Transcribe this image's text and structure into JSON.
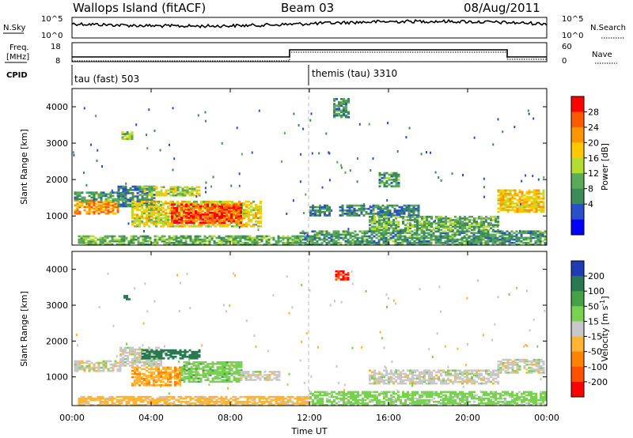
{
  "header": {
    "station": "Wallops Island (fitACF)",
    "beam": "Beam 03",
    "date": "08/Aug/2011"
  },
  "top_panels": {
    "nsky_label": "N.Sky",
    "nsky_ticks": [
      "10^5",
      "10^0"
    ],
    "nsearch_label": "N.Search",
    "nsearch_ticks": [
      "10^5",
      "10^0"
    ],
    "freq_label_line1": "Freq.",
    "freq_label_line2": "[MHz]",
    "freq_ticks": [
      "18",
      "8"
    ],
    "nave_label": "Nave",
    "nave_ticks": [
      "60",
      "0"
    ],
    "cpid_label": "CPID",
    "cpid_segments": [
      {
        "name": "tau (fast) 503",
        "start_hour": 0
      },
      {
        "name": "themis (tau) 3310",
        "start_hour": 12
      }
    ]
  },
  "chart_data": [
    {
      "type": "heatmap",
      "quantity": "Power",
      "ylabel": "Slant Range [km]",
      "xlabel": "Time UT",
      "xlim": [
        0,
        24
      ],
      "ylim": [
        200,
        4500
      ],
      "yticks": [
        "1000",
        "2000",
        "3000",
        "4000"
      ],
      "xticks": [
        "00:00",
        "04:00",
        "08:00",
        "12:00",
        "16:00",
        "20:00",
        "00:00"
      ],
      "colorbar_label": "Power [dB]",
      "colorbar_ticks": [
        "28",
        "24",
        "20",
        "16",
        "12",
        "8",
        "4"
      ],
      "colorbar_colors": [
        "#ff0000",
        "#ff5a00",
        "#ff9600",
        "#ffc800",
        "#b4dc32",
        "#5aaa5a",
        "#3c8c5a",
        "#2850c8",
        "#0000ff"
      ],
      "regions": [
        {
          "x": [
            0.1,
            2.3
          ],
          "range": [
            1050,
            1450
          ],
          "level": 22
        },
        {
          "x": [
            0.1,
            2.6
          ],
          "range": [
            1400,
            1650
          ],
          "level": 8
        },
        {
          "x": [
            2.3,
            4.2
          ],
          "range": [
            1250,
            1800
          ],
          "level": 6
        },
        {
          "x": [
            3.5,
            6.5
          ],
          "range": [
            1550,
            1800
          ],
          "level": 14
        },
        {
          "x": [
            3.0,
            9.5
          ],
          "range": [
            700,
            1400
          ],
          "level": 16
        },
        {
          "x": [
            5.0,
            8.5
          ],
          "range": [
            800,
            1300
          ],
          "level": 27
        },
        {
          "x": [
            2.5,
            3.0
          ],
          "range": [
            3100,
            3300
          ],
          "level": 12
        },
        {
          "x": [
            12.0,
            13.0
          ],
          "range": [
            1000,
            1300
          ],
          "level": 6
        },
        {
          "x": [
            13.5,
            17.5
          ],
          "range": [
            1000,
            1300
          ],
          "level": 6
        },
        {
          "x": [
            15.0,
            21.5
          ],
          "range": [
            600,
            1000
          ],
          "level": 10
        },
        {
          "x": [
            21.5,
            23.9
          ],
          "range": [
            1100,
            1700
          ],
          "level": 18
        },
        {
          "x": [
            13.2,
            14.0
          ],
          "range": [
            3700,
            4200
          ],
          "level": 6
        },
        {
          "x": [
            15.5,
            16.5
          ],
          "range": [
            1800,
            2200
          ],
          "level": 8
        },
        {
          "x": [
            0.3,
            11.5
          ],
          "range": [
            200,
            450
          ],
          "level": 10
        },
        {
          "x": [
            11.5,
            23.9
          ],
          "range": [
            200,
            600
          ],
          "level": 8
        }
      ]
    },
    {
      "type": "heatmap",
      "quantity": "Velocity",
      "ylabel": "Slant Range [km]",
      "xlabel": "Time UT",
      "xlim": [
        0,
        24
      ],
      "ylim": [
        200,
        4500
      ],
      "yticks": [
        "1000",
        "2000",
        "3000",
        "4000"
      ],
      "xticks": [
        "00:00",
        "04:00",
        "08:00",
        "12:00",
        "16:00",
        "20:00",
        "00:00"
      ],
      "colorbar_label": "Velocity [m s^-1]",
      "colorbar_ticks": [
        "200",
        "100",
        "50",
        "15",
        "-15",
        "-50",
        "-100",
        "-200"
      ],
      "colorbar_colors": [
        "#1e3cb4",
        "#287850",
        "#46a046",
        "#78d250",
        "#c8c8c8",
        "#ffb432",
        "#ff8200",
        "#ff5000",
        "#ff0000"
      ],
      "regions": [
        {
          "x": [
            0.1,
            2.4
          ],
          "range": [
            1150,
            1450
          ],
          "level": 0
        },
        {
          "x": [
            2.4,
            4.5
          ],
          "range": [
            1300,
            1800
          ],
          "level": 0
        },
        {
          "x": [
            3.5,
            6.5
          ],
          "range": [
            1500,
            1750
          ],
          "level": 180
        },
        {
          "x": [
            3.0,
            5.5
          ],
          "range": [
            750,
            1250
          ],
          "level": -40
        },
        {
          "x": [
            5.5,
            8.5
          ],
          "range": [
            850,
            1400
          ],
          "level": 35
        },
        {
          "x": [
            8.5,
            10.5
          ],
          "range": [
            900,
            1150
          ],
          "level": 0
        },
        {
          "x": [
            2.6,
            2.9
          ],
          "range": [
            3150,
            3280
          ],
          "level": 150
        },
        {
          "x": [
            13.3,
            14.0
          ],
          "range": [
            3700,
            3950
          ],
          "level": -200
        },
        {
          "x": [
            15.0,
            21.5
          ],
          "range": [
            800,
            1200
          ],
          "level": 0
        },
        {
          "x": [
            21.5,
            23.9
          ],
          "range": [
            1100,
            1500
          ],
          "level": 0
        },
        {
          "x": [
            0.3,
            12.0
          ],
          "range": [
            200,
            450
          ],
          "level": -30
        },
        {
          "x": [
            12.0,
            23.9
          ],
          "range": [
            200,
            600
          ],
          "level": 30
        }
      ]
    }
  ]
}
